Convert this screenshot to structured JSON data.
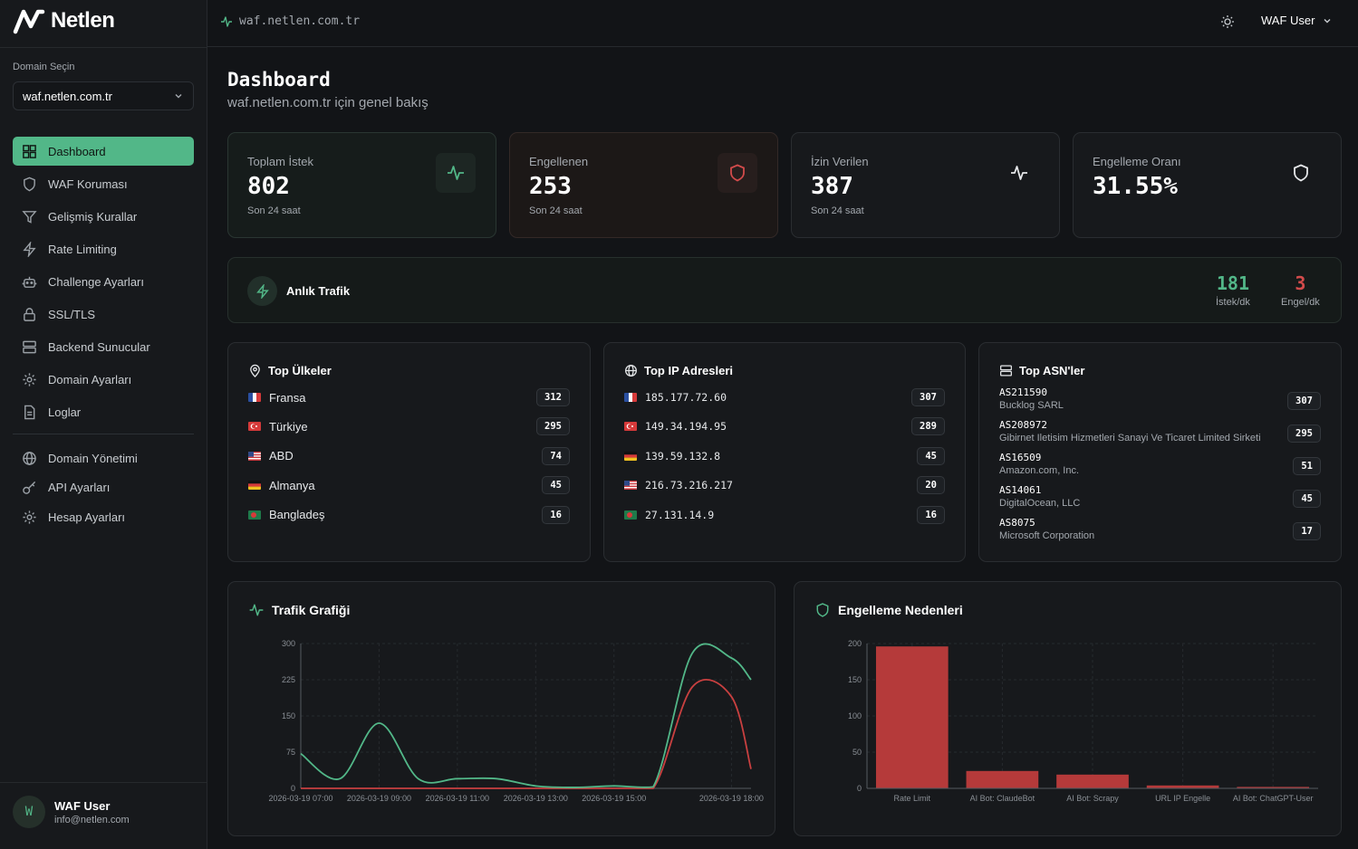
{
  "app": {
    "logo_text": "Netlen"
  },
  "sidebar": {
    "domain_label": "Domain Seçin",
    "domain_value": "waf.netlen.com.tr",
    "items": [
      {
        "label": "Dashboard",
        "icon": "dashboard-icon"
      },
      {
        "label": "WAF Koruması",
        "icon": "shield-icon"
      },
      {
        "label": "Gelişmiş Kurallar",
        "icon": "filter-icon"
      },
      {
        "label": "Rate Limiting",
        "icon": "bolt-icon"
      },
      {
        "label": "Challenge Ayarları",
        "icon": "bot-icon"
      },
      {
        "label": "SSL/TLS",
        "icon": "lock-icon"
      },
      {
        "label": "Backend Sunucular",
        "icon": "server-icon"
      },
      {
        "label": "Domain Ayarları",
        "icon": "gear-icon"
      },
      {
        "label": "Loglar",
        "icon": "file-icon"
      }
    ],
    "items2": [
      {
        "label": "Domain Yönetimi",
        "icon": "globe-icon"
      },
      {
        "label": "API Ayarları",
        "icon": "key-icon"
      },
      {
        "label": "Hesap Ayarları",
        "icon": "gear-icon"
      }
    ],
    "user": {
      "initial": "W",
      "name": "WAF User",
      "email": "info@netlen.com"
    }
  },
  "topbar": {
    "domain": "waf.netlen.com.tr",
    "user": "WAF User"
  },
  "page": {
    "title": "Dashboard",
    "subtitle": "waf.netlen.com.tr için genel bakış"
  },
  "stats": [
    {
      "label": "Toplam İstek",
      "value": "802",
      "sub": "Son 24 saat"
    },
    {
      "label": "Engellenen",
      "value": "253",
      "sub": "Son 24 saat"
    },
    {
      "label": "İzin Verilen",
      "value": "387",
      "sub": "Son 24 saat"
    },
    {
      "label": "Engelleme Oranı",
      "value": "31.55%"
    }
  ],
  "live": {
    "title": "Anlık Trafik",
    "req_value": "181",
    "req_label": "İstek/dk",
    "block_value": "3",
    "block_label": "Engel/dk"
  },
  "colors": {
    "accent": "#52b788",
    "danger": "#c94040"
  },
  "top_countries": {
    "title": "Top Ülkeler",
    "rows": [
      {
        "flag": "fr",
        "name": "Fransa",
        "count": "312"
      },
      {
        "flag": "tr",
        "name": "Türkiye",
        "count": "295"
      },
      {
        "flag": "us",
        "name": "ABD",
        "count": "74"
      },
      {
        "flag": "de",
        "name": "Almanya",
        "count": "45"
      },
      {
        "flag": "bd",
        "name": "Bangladeş",
        "count": "16"
      }
    ]
  },
  "top_ips": {
    "title": "Top IP Adresleri",
    "rows": [
      {
        "flag": "fr",
        "name": "185.177.72.60",
        "count": "307"
      },
      {
        "flag": "tr",
        "name": "149.34.194.95",
        "count": "289"
      },
      {
        "flag": "de",
        "name": "139.59.132.8",
        "count": "45"
      },
      {
        "flag": "us",
        "name": "216.73.216.217",
        "count": "20"
      },
      {
        "flag": "bd",
        "name": "27.131.14.9",
        "count": "16"
      }
    ]
  },
  "top_asns": {
    "title": "Top ASN'ler",
    "rows": [
      {
        "asn": "AS211590",
        "org": "Bucklog SARL",
        "count": "307"
      },
      {
        "asn": "AS208972",
        "org": "Gibirnet Iletisim Hizmetleri Sanayi Ve Ticaret Limited Sirketi",
        "count": "295"
      },
      {
        "asn": "AS16509",
        "org": "Amazon.com, Inc.",
        "count": "51"
      },
      {
        "asn": "AS14061",
        "org": "DigitalOcean, LLC",
        "count": "45"
      },
      {
        "asn": "AS8075",
        "org": "Microsoft Corporation",
        "count": "17"
      }
    ]
  },
  "chart_data": [
    {
      "type": "line",
      "title": "Trafik Grafiği",
      "ylim": [
        0,
        300
      ],
      "yticks": [
        0,
        75,
        150,
        225,
        300
      ],
      "xlim": [
        "2026-03-19 07:00",
        "2026-03-19 18:30"
      ],
      "xticks": [
        "2026-03-19 07:00",
        "2026-03-19 09:00",
        "2026-03-19 11:00",
        "2026-03-19 13:00",
        "2026-03-19 15:00",
        "2026-03-19 18:00"
      ],
      "x": [
        "2026-03-19 07:00",
        "2026-03-19 08:00",
        "2026-03-19 09:00",
        "2026-03-19 10:00",
        "2026-03-19 11:00",
        "2026-03-19 12:00",
        "2026-03-19 13:00",
        "2026-03-19 14:00",
        "2026-03-19 15:00",
        "2026-03-19 16:00",
        "2026-03-19 17:00",
        "2026-03-19 18:00",
        "2026-03-19 18:30"
      ],
      "series": [
        {
          "color": "#52b788",
          "values": [
            72,
            20,
            135,
            20,
            20,
            20,
            5,
            2,
            5,
            3,
            280,
            270,
            225
          ]
        },
        {
          "color": "#c94040",
          "values": [
            0,
            0,
            0,
            0,
            0,
            0,
            0,
            0,
            0,
            0,
            210,
            190,
            40
          ]
        }
      ]
    },
    {
      "type": "bar",
      "title": "Engelleme Nedenleri",
      "ylim": [
        0,
        200
      ],
      "yticks": [
        0,
        50,
        100,
        150,
        200
      ],
      "categories": [
        "Rate Limit",
        "AI Bot: ClaudeBot",
        "AI Bot: Scrapy",
        "URL IP Engelle",
        "AI Bot: ChatGPT-User"
      ],
      "values": [
        196,
        24,
        19,
        4,
        2
      ],
      "color": "#b53a3a"
    }
  ]
}
